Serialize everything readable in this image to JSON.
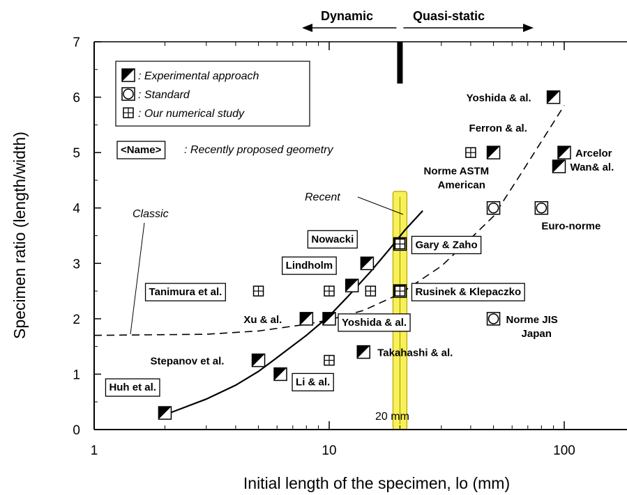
{
  "chart_data": {
    "type": "scatter",
    "title": "",
    "xlabel": "Initial length of the specimen, lo (mm)",
    "ylabel": "Specimen ratio (length/width)",
    "xscale": "log",
    "xlim": [
      1,
      180
    ],
    "ylim": [
      0,
      7
    ],
    "xticks": [
      "1",
      "10",
      "100"
    ],
    "yticks": [
      "0",
      "1",
      "2",
      "3",
      "4",
      "5",
      "6",
      "7"
    ],
    "grid": false,
    "regimes": {
      "dynamic": "Dynamic",
      "quasi_static": "Quasi-static",
      "boundary_x": 20
    },
    "legend": {
      "placement": "top-left",
      "experimental": ": Experimental approach",
      "standard": ": Standard",
      "numerical": ": Our numerical study",
      "recent_box": "<Name>",
      "recent_text": ": Recently proposed geometry"
    },
    "annotations": {
      "classic": "Classic",
      "recent": "Recent",
      "band_label": "20 mm",
      "band_x": 20
    },
    "points": [
      {
        "x": 2,
        "y": 0.3,
        "kind": "experimental",
        "label": "Huh et al.",
        "boxed": true
      },
      {
        "x": 5,
        "y": 1.25,
        "kind": "experimental",
        "label": "Stepanov et al.",
        "boxed": false
      },
      {
        "x": 6.2,
        "y": 1.0,
        "kind": "experimental",
        "label": "Li & al.",
        "boxed": true
      },
      {
        "x": 8,
        "y": 2.0,
        "kind": "experimental",
        "label": "Xu & al.",
        "boxed": false
      },
      {
        "x": 10,
        "y": 2.0,
        "kind": "experimental",
        "label": "Yoshida & al.",
        "boxed": true
      },
      {
        "x": 12.5,
        "y": 2.6,
        "kind": "experimental",
        "label": "Lindholm",
        "boxed": true
      },
      {
        "x": 14.5,
        "y": 3.0,
        "kind": "experimental",
        "label": "Nowacki",
        "boxed": true
      },
      {
        "x": 14,
        "y": 1.4,
        "kind": "experimental",
        "label": "Takahashi & al.",
        "boxed": false
      },
      {
        "x": 20,
        "y": 3.35,
        "kind": "experimental",
        "label": "Gary & Zaho",
        "boxed": true
      },
      {
        "x": 20,
        "y": 2.5,
        "kind": "experimental",
        "label": "Rusinek & Klepaczko",
        "boxed": true
      },
      {
        "x": 50,
        "y": 5.0,
        "kind": "experimental",
        "label": "Ferron & al.",
        "boxed": false
      },
      {
        "x": 90,
        "y": 6.0,
        "kind": "experimental",
        "label": "Yoshida & al.",
        "boxed": false
      },
      {
        "x": 100,
        "y": 5.0,
        "kind": "experimental",
        "label": "Arcelor",
        "boxed": false
      },
      {
        "x": 95,
        "y": 4.75,
        "kind": "experimental",
        "label": "Wan& al.",
        "boxed": false
      },
      {
        "x": 50,
        "y": 4.0,
        "kind": "standard",
        "label": "Norme ASTM American",
        "boxed": false
      },
      {
        "x": 80,
        "y": 4.0,
        "kind": "standard",
        "label": "Euro-norme",
        "boxed": false
      },
      {
        "x": 50,
        "y": 2.0,
        "kind": "standard",
        "label": "Norme JIS Japan",
        "boxed": false
      },
      {
        "x": 5,
        "y": 2.5,
        "kind": "numerical",
        "label": "Tanimura et al.",
        "boxed": true
      },
      {
        "x": 10,
        "y": 2.5,
        "kind": "numerical",
        "label": "",
        "boxed": false
      },
      {
        "x": 15,
        "y": 2.5,
        "kind": "numerical",
        "label": "",
        "boxed": false
      },
      {
        "x": 10,
        "y": 1.25,
        "kind": "numerical",
        "label": "",
        "boxed": false
      },
      {
        "x": 40,
        "y": 5.0,
        "kind": "numerical",
        "label": "",
        "boxed": false
      },
      {
        "x": 20,
        "y": 3.35,
        "kind": "numerical",
        "label": "",
        "boxed": false
      },
      {
        "x": 20,
        "y": 2.5,
        "kind": "numerical",
        "label": "",
        "boxed": false
      }
    ],
    "curves": {
      "recent": [
        [
          2.1,
          0.3
        ],
        [
          3,
          0.55
        ],
        [
          4,
          0.8
        ],
        [
          5,
          1.05
        ],
        [
          6,
          1.3
        ],
        [
          8,
          1.7
        ],
        [
          10,
          2.05
        ],
        [
          12,
          2.4
        ],
        [
          15,
          2.85
        ],
        [
          18,
          3.25
        ],
        [
          21,
          3.6
        ],
        [
          25,
          3.95
        ]
      ],
      "classic": [
        [
          1,
          1.7
        ],
        [
          3,
          1.72
        ],
        [
          5,
          1.78
        ],
        [
          8,
          1.9
        ],
        [
          10,
          1.98
        ],
        [
          14,
          2.15
        ],
        [
          20,
          2.45
        ],
        [
          30,
          2.95
        ],
        [
          40,
          3.45
        ],
        [
          50,
          3.85
        ],
        [
          65,
          4.6
        ],
        [
          80,
          5.2
        ],
        [
          100,
          5.85
        ]
      ]
    }
  }
}
